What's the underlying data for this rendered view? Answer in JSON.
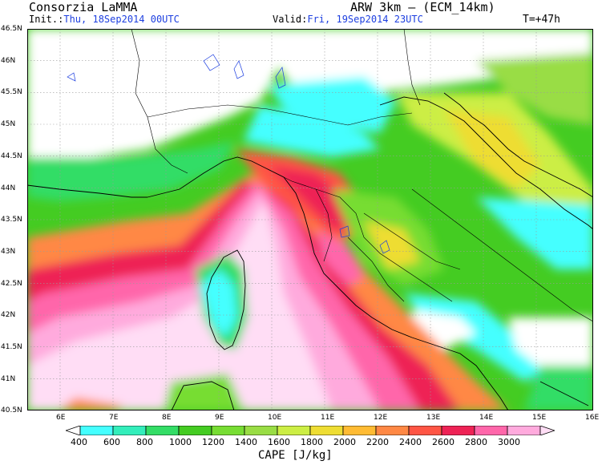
{
  "header": {
    "organization": "Consorzia LaMMA",
    "model": "ARW 3km – (ECM_14km)",
    "init_label": "Init.:",
    "init_value": "Thu, 18Sep2014 00UTC",
    "valid_label": "Valid:",
    "valid_value": "Fri, 19Sep2014 23UTC",
    "forecast_step": "T=+47h"
  },
  "map": {
    "lat_labels": [
      "46.5N",
      "46N",
      "45.5N",
      "45N",
      "44.5N",
      "44N",
      "43.5N",
      "43N",
      "42.5N",
      "42N",
      "41.5N",
      "41N",
      "40.5N"
    ],
    "lon_labels": [
      "6E",
      "7E",
      "8E",
      "9E",
      "10E",
      "11E",
      "12E",
      "13E",
      "14E",
      "15E",
      "16E"
    ],
    "extent": {
      "lon_min": 5.4,
      "lon_max": 16.1,
      "lat_min": 40.5,
      "lat_max": 46.5
    }
  },
  "colorbar": {
    "title": "CAPE [J/kg]",
    "labels": [
      "400",
      "600",
      "800",
      "1000",
      "1200",
      "1400",
      "1600",
      "1800",
      "2000",
      "2200",
      "2400",
      "2600",
      "2800",
      "3000"
    ],
    "colors": [
      "#ffffff",
      "#44ffff",
      "#33eebb",
      "#33dd66",
      "#44cc22",
      "#77dd33",
      "#99dd44",
      "#ccee44",
      "#eedd33",
      "#ffbb33",
      "#ff8844",
      "#ff5544",
      "#ee2255",
      "#ff66aa",
      "#ffaadd",
      "#ffddf5"
    ],
    "colors_note": "ordered low to high"
  }
}
